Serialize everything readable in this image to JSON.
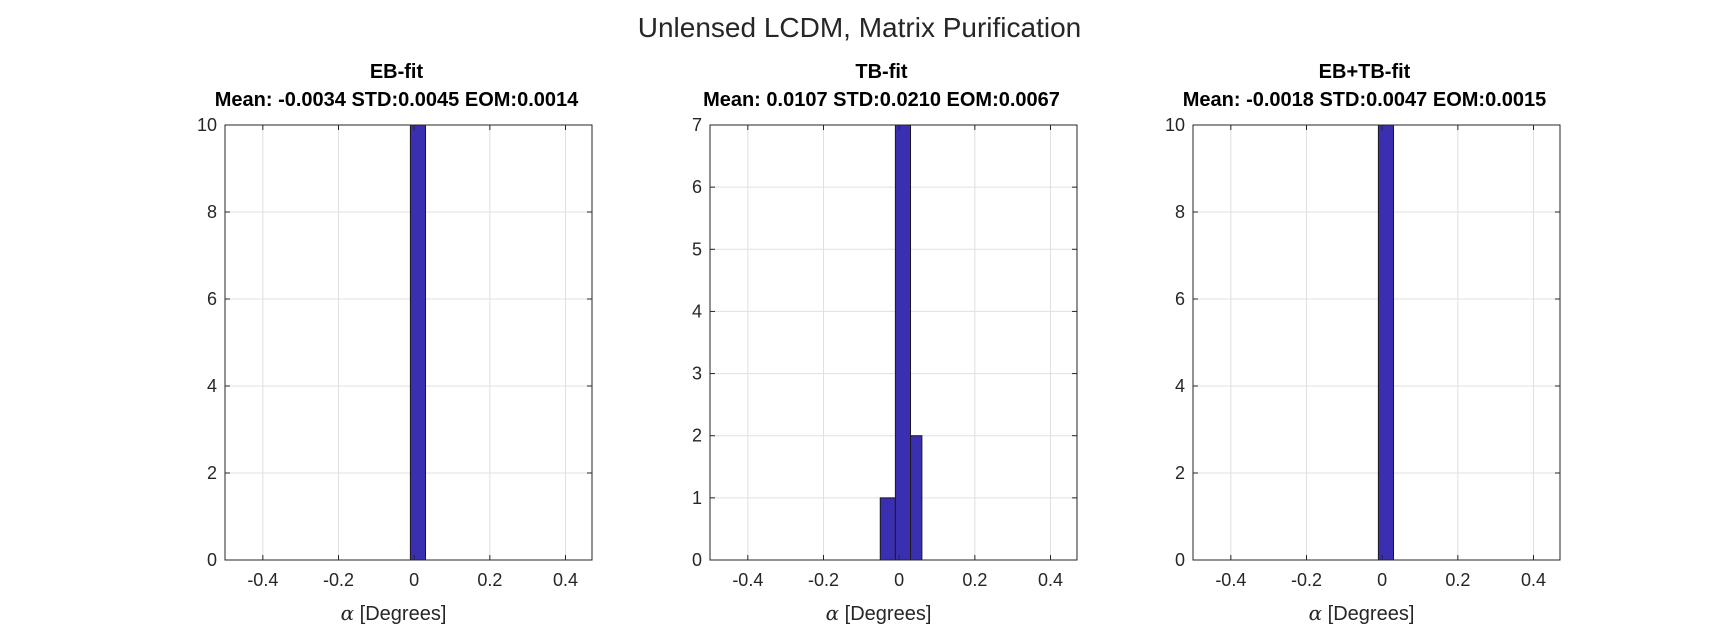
{
  "figure": {
    "title": "Unlensed LCDM, Matrix Purification"
  },
  "chart_data": [
    {
      "type": "bar",
      "title": "EB-fit",
      "subtitle": "Mean: -0.0034 STD:0.0045 EOM:0.0014",
      "xlabel_symbol": "α",
      "xlabel_text": " [Degrees]",
      "ylabel": "",
      "xlim": [
        -0.5,
        0.47
      ],
      "ylim": [
        0,
        10
      ],
      "xticks": [
        -0.4,
        -0.2,
        0,
        0.2,
        0.4
      ],
      "xtick_labels": [
        "-0.4",
        "-0.2",
        "0",
        "0.2",
        "0.4"
      ],
      "yticks": [
        0,
        2,
        4,
        6,
        8,
        10
      ],
      "ytick_labels": [
        "0",
        "2",
        "4",
        "6",
        "8",
        "10"
      ],
      "grid": true,
      "bar_color": "#3a2fb0",
      "bins": [
        {
          "x0": -0.01,
          "x1": 0.03,
          "count": 10
        }
      ]
    },
    {
      "type": "bar",
      "title": "TB-fit",
      "subtitle": "Mean: 0.0107 STD:0.0210 EOM:0.0067",
      "xlabel_symbol": "α",
      "xlabel_text": " [Degrees]",
      "ylabel": "",
      "xlim": [
        -0.5,
        0.47
      ],
      "ylim": [
        0,
        7
      ],
      "xticks": [
        -0.4,
        -0.2,
        0,
        0.2,
        0.4
      ],
      "xtick_labels": [
        "-0.4",
        "-0.2",
        "0",
        "0.2",
        "0.4"
      ],
      "yticks": [
        0,
        1,
        2,
        3,
        4,
        5,
        6,
        7
      ],
      "ytick_labels": [
        "0",
        "1",
        "2",
        "3",
        "4",
        "5",
        "6",
        "7"
      ],
      "grid": true,
      "bar_color": "#3a2fb0",
      "bins": [
        {
          "x0": -0.05,
          "x1": -0.01,
          "count": 1
        },
        {
          "x0": -0.01,
          "x1": 0.03,
          "count": 7
        },
        {
          "x0": 0.03,
          "x1": 0.06,
          "count": 2
        }
      ]
    },
    {
      "type": "bar",
      "title": "EB+TB-fit",
      "subtitle": "Mean: -0.0018 STD:0.0047 EOM:0.0015",
      "xlabel_symbol": "α",
      "xlabel_text": " [Degrees]",
      "ylabel": "",
      "xlim": [
        -0.5,
        0.47
      ],
      "ylim": [
        0,
        10
      ],
      "xticks": [
        -0.4,
        -0.2,
        0,
        0.2,
        0.4
      ],
      "xtick_labels": [
        "-0.4",
        "-0.2",
        "0",
        "0.2",
        "0.4"
      ],
      "yticks": [
        0,
        2,
        4,
        6,
        8,
        10
      ],
      "ytick_labels": [
        "0",
        "2",
        "4",
        "6",
        "8",
        "10"
      ],
      "grid": true,
      "bar_color": "#3a2fb0",
      "bins": [
        {
          "x0": -0.01,
          "x1": 0.03,
          "count": 10
        }
      ]
    }
  ]
}
